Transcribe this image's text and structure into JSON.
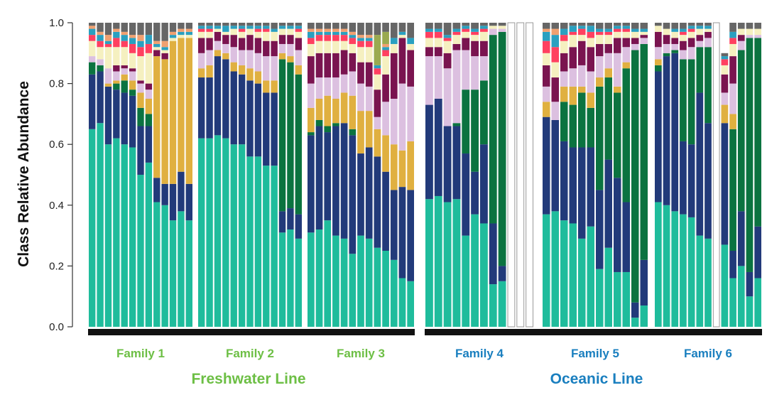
{
  "chart_data": {
    "type": "bar",
    "stacked": true,
    "ylabel": "Class Relative Abundance",
    "ylim": [
      0,
      1
    ],
    "yticks": [
      "0.0",
      "0.2",
      "0.4",
      "0.6",
      "0.8",
      "1.0"
    ],
    "line_labels": [
      {
        "label": "Freshwater Line",
        "color": "#6dbf45"
      },
      {
        "label": "Oceanic Line",
        "color": "#1a7fbf"
      }
    ],
    "class_colors": [
      "#1fbc9c",
      "#223a7a",
      "#0b7340",
      "#e0b040",
      "#dcc0e0",
      "#7a1450",
      "#f5f0c0",
      "#ff4060",
      "#2aa0c0",
      "#f0a070",
      "#9aaa50",
      "#666666"
    ],
    "families": [
      {
        "label": "Family 1",
        "line": 0,
        "bars": [
          [
            0.65,
            0.18,
            0.04,
            0.0,
            0.02,
            0.0,
            0.05,
            0.02,
            0.02,
            0.01,
            0.0,
            0.01
          ],
          [
            0.67,
            0.17,
            0.02,
            0.0,
            0.02,
            0.0,
            0.04,
            0.02,
            0.02,
            0.01,
            0.0,
            0.03
          ],
          [
            0.6,
            0.19,
            0.0,
            0.01,
            0.05,
            0.0,
            0.07,
            0.01,
            0.01,
            0.02,
            0.0,
            0.04
          ],
          [
            0.62,
            0.16,
            0.02,
            0.01,
            0.03,
            0.02,
            0.06,
            0.03,
            0.02,
            0.01,
            0.0,
            0.02
          ],
          [
            0.6,
            0.17,
            0.04,
            0.02,
            0.02,
            0.01,
            0.06,
            0.02,
            0.02,
            0.01,
            0.0,
            0.03
          ],
          [
            0.59,
            0.17,
            0.02,
            0.03,
            0.03,
            0.01,
            0.05,
            0.03,
            0.02,
            0.01,
            0.0,
            0.04
          ],
          [
            0.5,
            0.16,
            0.06,
            0.05,
            0.03,
            0.01,
            0.08,
            0.03,
            0.02,
            0.02,
            0.0,
            0.04
          ],
          [
            0.54,
            0.12,
            0.04,
            0.05,
            0.03,
            0.02,
            0.1,
            0.03,
            0.03,
            0.0,
            0.0,
            0.04
          ],
          [
            0.41,
            0.08,
            0.0,
            0.4,
            0.0,
            0.02,
            0.01,
            0.0,
            0.01,
            0.01,
            0.0,
            0.06
          ],
          [
            0.4,
            0.07,
            0.0,
            0.41,
            0.0,
            0.02,
            0.01,
            0.0,
            0.01,
            0.02,
            0.0,
            0.06
          ],
          [
            0.35,
            0.12,
            0.0,
            0.47,
            0.0,
            0.0,
            0.01,
            0.0,
            0.01,
            0.01,
            0.0,
            0.03
          ],
          [
            0.38,
            0.13,
            0.0,
            0.44,
            0.0,
            0.0,
            0.01,
            0.0,
            0.01,
            0.01,
            0.0,
            0.02
          ],
          [
            0.35,
            0.12,
            0.0,
            0.48,
            0.0,
            0.0,
            0.01,
            0.0,
            0.01,
            0.01,
            0.0,
            0.02
          ]
        ]
      },
      {
        "label": "Family 2",
        "line": 0,
        "bars": [
          [
            0.62,
            0.2,
            0.0,
            0.03,
            0.05,
            0.05,
            0.02,
            0.01,
            0.01,
            0.0,
            0.0,
            0.01
          ],
          [
            0.62,
            0.2,
            0.0,
            0.04,
            0.05,
            0.04,
            0.02,
            0.01,
            0.01,
            0.0,
            0.0,
            0.01
          ],
          [
            0.63,
            0.26,
            0.0,
            0.02,
            0.03,
            0.03,
            0.01,
            0.0,
            0.01,
            0.0,
            0.0,
            0.01
          ],
          [
            0.62,
            0.26,
            0.0,
            0.02,
            0.03,
            0.03,
            0.01,
            0.0,
            0.02,
            0.0,
            0.0,
            0.01
          ],
          [
            0.6,
            0.24,
            0.0,
            0.03,
            0.05,
            0.04,
            0.02,
            0.0,
            0.01,
            0.0,
            0.0,
            0.01
          ],
          [
            0.6,
            0.23,
            0.0,
            0.03,
            0.05,
            0.04,
            0.02,
            0.01,
            0.01,
            0.0,
            0.0,
            0.01
          ],
          [
            0.56,
            0.25,
            0.0,
            0.04,
            0.06,
            0.05,
            0.02,
            0.0,
            0.01,
            0.0,
            0.0,
            0.01
          ],
          [
            0.56,
            0.24,
            0.0,
            0.04,
            0.06,
            0.05,
            0.02,
            0.01,
            0.01,
            0.0,
            0.0,
            0.01
          ],
          [
            0.53,
            0.24,
            0.0,
            0.04,
            0.08,
            0.05,
            0.03,
            0.01,
            0.01,
            0.0,
            0.0,
            0.01
          ],
          [
            0.53,
            0.24,
            0.0,
            0.04,
            0.08,
            0.05,
            0.03,
            0.0,
            0.01,
            0.0,
            0.0,
            0.02
          ],
          [
            0.31,
            0.07,
            0.5,
            0.02,
            0.03,
            0.03,
            0.02,
            0.0,
            0.01,
            0.0,
            0.0,
            0.01
          ],
          [
            0.32,
            0.07,
            0.48,
            0.02,
            0.04,
            0.03,
            0.02,
            0.0,
            0.01,
            0.0,
            0.0,
            0.01
          ],
          [
            0.29,
            0.08,
            0.46,
            0.03,
            0.05,
            0.04,
            0.02,
            0.01,
            0.01,
            0.0,
            0.0,
            0.01
          ]
        ]
      },
      {
        "label": "Family 3",
        "line": 0,
        "bars": [
          [
            0.31,
            0.32,
            0.01,
            0.08,
            0.08,
            0.09,
            0.04,
            0.02,
            0.02,
            0.01,
            0.0,
            0.02
          ],
          [
            0.32,
            0.34,
            0.02,
            0.07,
            0.07,
            0.08,
            0.04,
            0.02,
            0.01,
            0.01,
            0.0,
            0.02
          ],
          [
            0.35,
            0.29,
            0.02,
            0.1,
            0.06,
            0.08,
            0.04,
            0.02,
            0.01,
            0.01,
            0.0,
            0.02
          ],
          [
            0.3,
            0.36,
            0.01,
            0.08,
            0.07,
            0.08,
            0.04,
            0.02,
            0.01,
            0.01,
            0.0,
            0.02
          ],
          [
            0.29,
            0.38,
            0.0,
            0.1,
            0.06,
            0.08,
            0.03,
            0.02,
            0.01,
            0.01,
            0.0,
            0.02
          ],
          [
            0.24,
            0.39,
            0.02,
            0.11,
            0.08,
            0.06,
            0.03,
            0.02,
            0.01,
            0.01,
            0.0,
            0.03
          ],
          [
            0.3,
            0.27,
            0.0,
            0.14,
            0.09,
            0.07,
            0.05,
            0.02,
            0.01,
            0.01,
            0.0,
            0.04
          ],
          [
            0.29,
            0.3,
            0.0,
            0.12,
            0.08,
            0.08,
            0.05,
            0.02,
            0.01,
            0.01,
            0.0,
            0.04
          ],
          [
            0.26,
            0.3,
            0.0,
            0.09,
            0.04,
            0.09,
            0.05,
            0.02,
            0.01,
            0.0,
            0.1,
            0.04
          ],
          [
            0.25,
            0.26,
            0.0,
            0.12,
            0.11,
            0.09,
            0.06,
            0.02,
            0.01,
            0.01,
            0.04,
            0.03
          ],
          [
            0.22,
            0.23,
            0.0,
            0.15,
            0.15,
            0.15,
            0.03,
            0.0,
            0.02,
            0.0,
            0.0,
            0.05
          ],
          [
            0.16,
            0.3,
            0.0,
            0.12,
            0.22,
            0.15,
            0.01,
            0.0,
            0.01,
            0.0,
            0.0,
            0.03
          ],
          [
            0.15,
            0.3,
            0.0,
            0.16,
            0.18,
            0.12,
            0.02,
            0.0,
            0.02,
            0.0,
            0.0,
            0.05
          ]
        ]
      },
      {
        "label": "Family 4",
        "line": 1,
        "bars": [
          [
            0.42,
            0.31,
            0.0,
            0.0,
            0.16,
            0.03,
            0.03,
            0.02,
            0.01,
            0.0,
            0.0,
            0.02
          ],
          [
            0.43,
            0.32,
            0.0,
            0.0,
            0.14,
            0.03,
            0.03,
            0.02,
            0.01,
            0.0,
            0.0,
            0.02
          ],
          [
            0.41,
            0.25,
            0.0,
            0.0,
            0.19,
            0.05,
            0.04,
            0.01,
            0.01,
            0.0,
            0.0,
            0.04
          ],
          [
            0.42,
            0.24,
            0.01,
            0.0,
            0.24,
            0.02,
            0.03,
            0.01,
            0.01,
            0.0,
            0.0,
            0.02
          ],
          [
            0.3,
            0.27,
            0.21,
            0.0,
            0.13,
            0.04,
            0.02,
            0.01,
            0.01,
            0.0,
            0.0,
            0.01
          ],
          [
            0.37,
            0.14,
            0.27,
            0.0,
            0.11,
            0.05,
            0.02,
            0.01,
            0.01,
            0.0,
            0.0,
            0.02
          ],
          [
            0.34,
            0.26,
            0.21,
            0.0,
            0.08,
            0.05,
            0.03,
            0.01,
            0.01,
            0.0,
            0.0,
            0.01
          ],
          [
            0.14,
            0.2,
            0.62,
            0.0,
            0.02,
            0.0,
            0.01,
            0.0,
            0.0,
            0.0,
            0.0,
            0.01
          ],
          [
            0.15,
            0.05,
            0.77,
            0.0,
            0.01,
            0.0,
            0.01,
            0.0,
            0.0,
            0.0,
            0.0,
            0.01
          ],
          [
            0.0,
            0.0,
            0.0,
            0.0,
            0.0,
            0.0,
            0.0,
            0.0,
            0.0,
            0.0,
            0.0,
            0.0
          ],
          [
            0.0,
            0.0,
            0.0,
            0.0,
            0.0,
            0.0,
            0.0,
            0.0,
            0.0,
            0.0,
            0.0,
            0.0
          ],
          [
            0.0,
            0.0,
            0.0,
            0.0,
            0.0,
            0.0,
            0.0,
            0.0,
            0.0,
            0.0,
            0.0,
            0.0
          ]
        ]
      },
      {
        "label": "Family 5",
        "line": 1,
        "bars": [
          [
            0.37,
            0.32,
            0.0,
            0.05,
            0.05,
            0.07,
            0.04,
            0.04,
            0.03,
            0.01,
            0.0,
            0.02
          ],
          [
            0.38,
            0.3,
            0.0,
            0.0,
            0.06,
            0.08,
            0.05,
            0.05,
            0.04,
            0.02,
            0.0,
            0.02
          ],
          [
            0.35,
            0.26,
            0.13,
            0.05,
            0.05,
            0.06,
            0.04,
            0.02,
            0.02,
            0.0,
            0.0,
            0.02
          ],
          [
            0.34,
            0.25,
            0.14,
            0.06,
            0.06,
            0.07,
            0.04,
            0.01,
            0.02,
            0.0,
            0.0,
            0.01
          ],
          [
            0.29,
            0.3,
            0.18,
            0.02,
            0.07,
            0.08,
            0.02,
            0.02,
            0.01,
            0.0,
            0.0,
            0.01
          ],
          [
            0.33,
            0.26,
            0.13,
            0.05,
            0.07,
            0.08,
            0.03,
            0.02,
            0.02,
            0.0,
            0.0,
            0.01
          ],
          [
            0.19,
            0.26,
            0.34,
            0.03,
            0.07,
            0.04,
            0.03,
            0.01,
            0.01,
            0.0,
            0.0,
            0.02
          ],
          [
            0.26,
            0.29,
            0.27,
            0.03,
            0.05,
            0.03,
            0.03,
            0.01,
            0.01,
            0.0,
            0.0,
            0.02
          ],
          [
            0.18,
            0.31,
            0.28,
            0.02,
            0.11,
            0.05,
            0.02,
            0.01,
            0.01,
            0.0,
            0.0,
            0.01
          ],
          [
            0.18,
            0.23,
            0.44,
            0.02,
            0.05,
            0.03,
            0.02,
            0.01,
            0.01,
            0.0,
            0.0,
            0.01
          ],
          [
            0.03,
            0.05,
            0.83,
            0.0,
            0.02,
            0.02,
            0.02,
            0.0,
            0.01,
            0.0,
            0.0,
            0.02
          ],
          [
            0.07,
            0.15,
            0.71,
            0.0,
            0.02,
            0.01,
            0.01,
            0.0,
            0.01,
            0.0,
            0.0,
            0.02
          ]
        ]
      },
      {
        "label": "Family 6",
        "line": 1,
        "bars": [
          [
            0.41,
            0.43,
            0.02,
            0.02,
            0.04,
            0.05,
            0.02,
            0.0,
            0.0,
            0.0,
            0.0,
            0.01
          ],
          [
            0.4,
            0.49,
            0.01,
            0.0,
            0.03,
            0.03,
            0.02,
            0.0,
            0.0,
            0.0,
            0.0,
            0.02
          ],
          [
            0.38,
            0.52,
            0.01,
            0.0,
            0.02,
            0.02,
            0.02,
            0.0,
            0.01,
            0.0,
            0.0,
            0.02
          ],
          [
            0.37,
            0.24,
            0.27,
            0.0,
            0.03,
            0.03,
            0.02,
            0.01,
            0.01,
            0.0,
            0.0,
            0.02
          ],
          [
            0.36,
            0.24,
            0.28,
            0.0,
            0.04,
            0.03,
            0.02,
            0.01,
            0.01,
            0.0,
            0.0,
            0.01
          ],
          [
            0.3,
            0.47,
            0.15,
            0.0,
            0.02,
            0.02,
            0.02,
            0.0,
            0.01,
            0.0,
            0.0,
            0.01
          ],
          [
            0.29,
            0.38,
            0.25,
            0.0,
            0.03,
            0.02,
            0.01,
            0.0,
            0.01,
            0.0,
            0.0,
            0.01
          ],
          [
            0.0,
            0.0,
            0.0,
            0.0,
            0.0,
            0.0,
            0.0,
            0.0,
            0.0,
            0.0,
            0.0,
            0.0
          ],
          [
            0.27,
            0.4,
            0.0,
            0.06,
            0.04,
            0.06,
            0.03,
            0.02,
            0.01,
            0.0,
            0.0,
            0.01
          ],
          [
            0.16,
            0.09,
            0.4,
            0.05,
            0.1,
            0.09,
            0.04,
            0.02,
            0.02,
            0.0,
            0.0,
            0.03
          ],
          [
            0.2,
            0.18,
            0.53,
            0.0,
            0.03,
            0.02,
            0.02,
            0.0,
            0.0,
            0.0,
            0.0,
            0.02
          ],
          [
            0.1,
            0.08,
            0.77,
            0.0,
            0.01,
            0.0,
            0.02,
            0.0,
            0.0,
            0.0,
            0.0,
            0.02
          ],
          [
            0.16,
            0.17,
            0.62,
            0.0,
            0.01,
            0.0,
            0.02,
            0.0,
            0.0,
            0.0,
            0.0,
            0.02
          ]
        ]
      }
    ]
  }
}
